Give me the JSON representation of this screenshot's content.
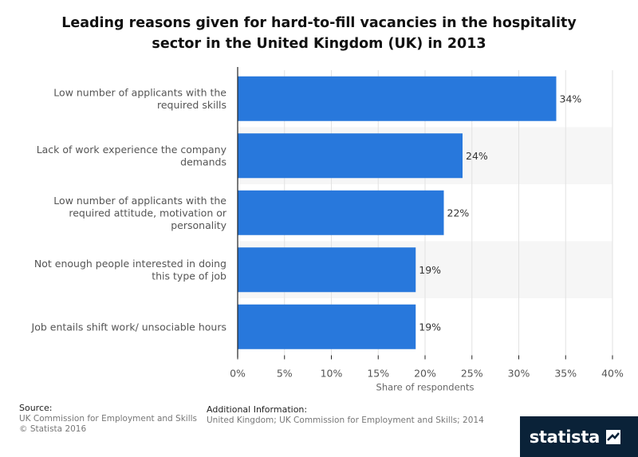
{
  "title": {
    "line1": "Leading reasons given for hard-to-fill vacancies in the hospitality",
    "line2": "sector in the United Kingdom (UK) in 2013"
  },
  "chart_data": {
    "type": "bar",
    "orientation": "horizontal",
    "categories": [
      [
        "Low number of applicants with the",
        "required skills"
      ],
      [
        "Lack of work experience the company",
        "demands"
      ],
      [
        "Low number of applicants with the",
        "required attitude, motivation or",
        "personality"
      ],
      [
        "Not enough people interested in doing",
        "this type of job"
      ],
      [
        "Job entails shift work/ unsociable hours"
      ]
    ],
    "values": [
      34,
      24,
      22,
      19,
      19
    ],
    "value_labels": [
      "34%",
      "24%",
      "22%",
      "19%",
      "19%"
    ],
    "xlim": [
      0,
      40
    ],
    "ticks": [
      0,
      5,
      10,
      15,
      20,
      25,
      30,
      35,
      40
    ],
    "tick_labels": [
      "0%",
      "5%",
      "10%",
      "15%",
      "20%",
      "25%",
      "30%",
      "35%",
      "40%"
    ],
    "xlabel": "Share of respondents",
    "bar_color": "#2878dc",
    "grid": true
  },
  "footer": {
    "source_head": "Source:",
    "source_line1": "UK Commission for Employment and Skills",
    "source_line2": "© Statista 2016",
    "info_head": "Additional Information:",
    "info_text": "United Kingdom; UK Commission for Employment and Skills; 2014"
  },
  "logo": {
    "text": "statista",
    "icon": "statista-logo-icon"
  }
}
